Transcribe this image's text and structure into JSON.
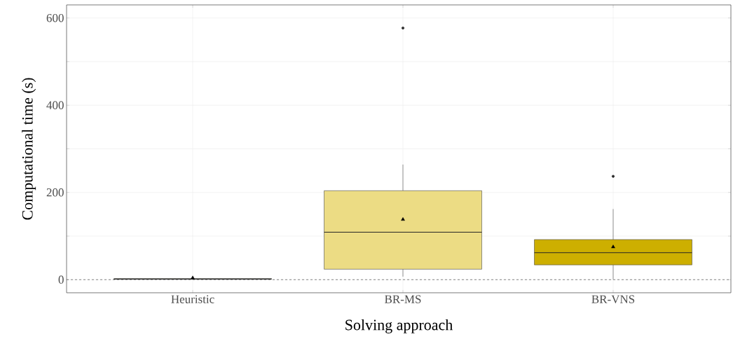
{
  "chart_data": {
    "type": "box",
    "xlabel": "Solving approach",
    "ylabel": "Computational time (s)",
    "categories": [
      "Heuristic",
      "BR-MS",
      "BR-VNS"
    ],
    "colors": [
      "#f5f0c8",
      "#ecdc84",
      "#cdaf00"
    ],
    "boxes": [
      {
        "low": 0.5,
        "q1": 1,
        "median": 1.5,
        "q3": 2.5,
        "high": 3,
        "mean": 4
      },
      {
        "low": 7,
        "q1": 24,
        "median": 109,
        "q3": 204,
        "high": 264,
        "mean": 138,
        "outliers": [
          577
        ]
      },
      {
        "low": 1,
        "q1": 34,
        "median": 62,
        "q3": 92,
        "high": 162,
        "mean": 75,
        "outliers": [
          237
        ]
      }
    ],
    "ylim": [
      -30,
      630
    ],
    "yticks": [
      0,
      {
        "value": 100,
        "label": null
      },
      200,
      {
        "value": 300,
        "label": null
      },
      400,
      {
        "value": 500,
        "label": null
      },
      600
    ],
    "ref_lines": [
      {
        "axis": "y",
        "value": 0,
        "line_style": "dashed",
        "color": "#555555"
      }
    ],
    "grid": true
  }
}
